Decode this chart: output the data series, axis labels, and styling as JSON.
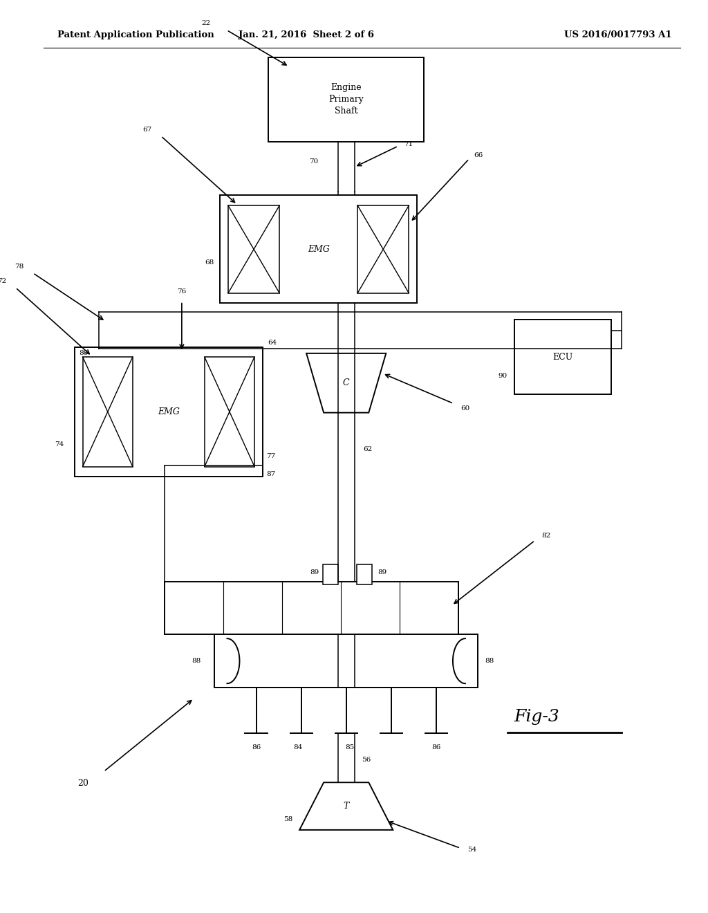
{
  "bg_color": "#ffffff",
  "header_left": "Patent Application Publication",
  "header_mid": "Jan. 21, 2016  Sheet 2 of 6",
  "header_right": "US 2016/0017793 A1",
  "lw": 1.4,
  "lw2": 1.1,
  "fs_ref": 7.5,
  "fs_header": 9.5,
  "fs_label": 9.0
}
